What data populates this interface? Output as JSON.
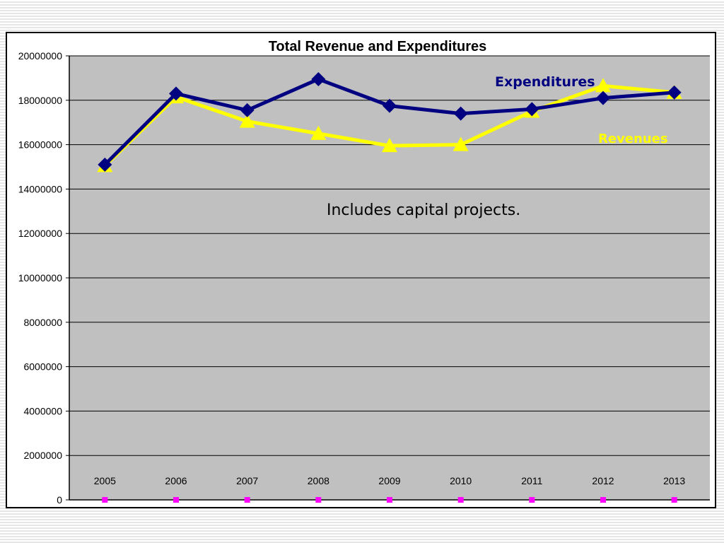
{
  "chart_data": {
    "type": "line",
    "title": "Total Revenue and Expenditures",
    "categories": [
      "2005",
      "2006",
      "2007",
      "2008",
      "2009",
      "2010",
      "2011",
      "2012",
      "2013"
    ],
    "ylim": [
      0,
      20000000
    ],
    "yticks": [
      "20000000",
      "18000000",
      "16000000",
      "14000000",
      "12000000",
      "10000000",
      "8000000",
      "6000000",
      "4000000",
      "2000000",
      "0"
    ],
    "grid": true,
    "series": [
      {
        "name": "Expenditures",
        "color": "#000080",
        "marker": "diamond",
        "values": [
          15100000,
          18300000,
          17550000,
          18950000,
          17750000,
          17400000,
          17600000,
          18100000,
          18350000
        ]
      },
      {
        "name": "Revenues",
        "color": "#ffff00",
        "marker": "triangle",
        "values": [
          15050000,
          18150000,
          17050000,
          16500000,
          15950000,
          16000000,
          17500000,
          18650000,
          18350000
        ]
      },
      {
        "name": "",
        "color": "#ff00ff",
        "marker": "square",
        "values": [
          0,
          0,
          0,
          0,
          0,
          0,
          0,
          0,
          0
        ]
      }
    ],
    "annotation": "Includes capital projects.",
    "plot_background": "#c0c0c0"
  }
}
